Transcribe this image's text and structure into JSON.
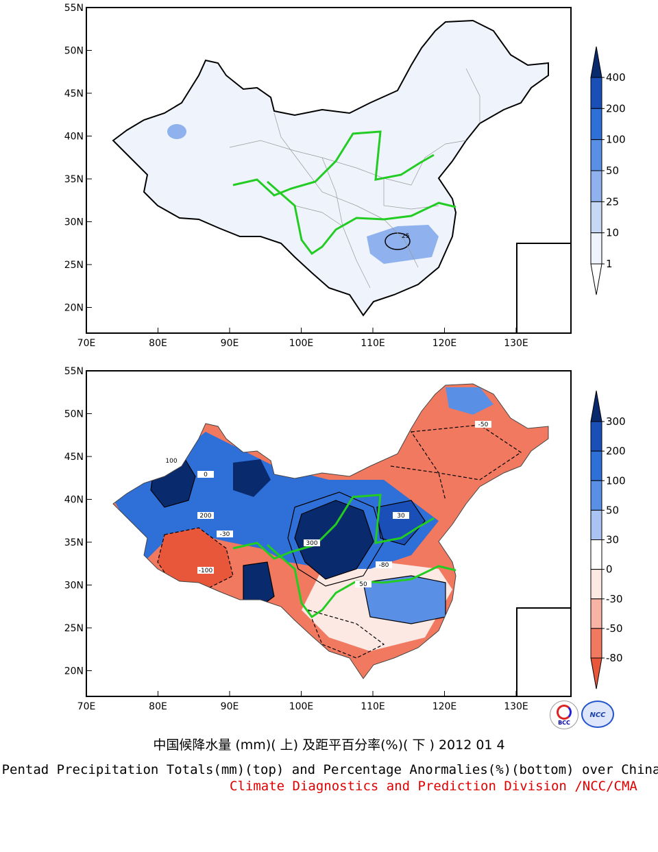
{
  "top_map": {
    "lat_ticks": [
      "55N",
      "50N",
      "45N",
      "40N",
      "35N",
      "30N",
      "25N",
      "20N"
    ],
    "lon_ticks": [
      "70E",
      "80E",
      "90E",
      "100E",
      "110E",
      "120E",
      "130E"
    ],
    "contour_label": "25",
    "colorbar": {
      "levels": [
        "400",
        "200",
        "100",
        "50",
        "25",
        "10",
        "1"
      ],
      "colors": [
        "#0a2a6e",
        "#1b4fb8",
        "#2e6fd8",
        "#5a8fe6",
        "#8fb2ef",
        "#c6d8f6",
        "#eef3fc",
        "#ffffff"
      ]
    }
  },
  "bottom_map": {
    "lat_ticks": [
      "55N",
      "50N",
      "45N",
      "40N",
      "35N",
      "30N",
      "25N",
      "20N"
    ],
    "lon_ticks": [
      "70E",
      "80E",
      "90E",
      "100E",
      "110E",
      "120E",
      "130E"
    ],
    "contour_labels": [
      "300",
      "200",
      "100",
      "50",
      "30",
      "0",
      "-30",
      "-50",
      "-80",
      "-100"
    ],
    "colorbar": {
      "levels": [
        "300",
        "200",
        "100",
        "50",
        "30",
        "0",
        "-30",
        "-50",
        "-80"
      ],
      "colors": [
        "#0a2a6e",
        "#1b4fb8",
        "#2e6fd8",
        "#5a8fe6",
        "#a9c4f2",
        "#ffffff",
        "#fde9e4",
        "#f7b3a4",
        "#f0795f",
        "#e8573a"
      ]
    }
  },
  "logos": {
    "left": "BCC",
    "right": "NCC"
  },
  "captions": {
    "chinese": "中国候降水量 (mm)( 上) 及距平百分率(%)( 下 ) 2012 01 4",
    "english": "Pentad Precipitation Totals(mm)(top) and Percentage Anormalies(%)(bottom) over China",
    "division": "Climate Diagnostics and Prediction Division /NCC/CMA"
  }
}
